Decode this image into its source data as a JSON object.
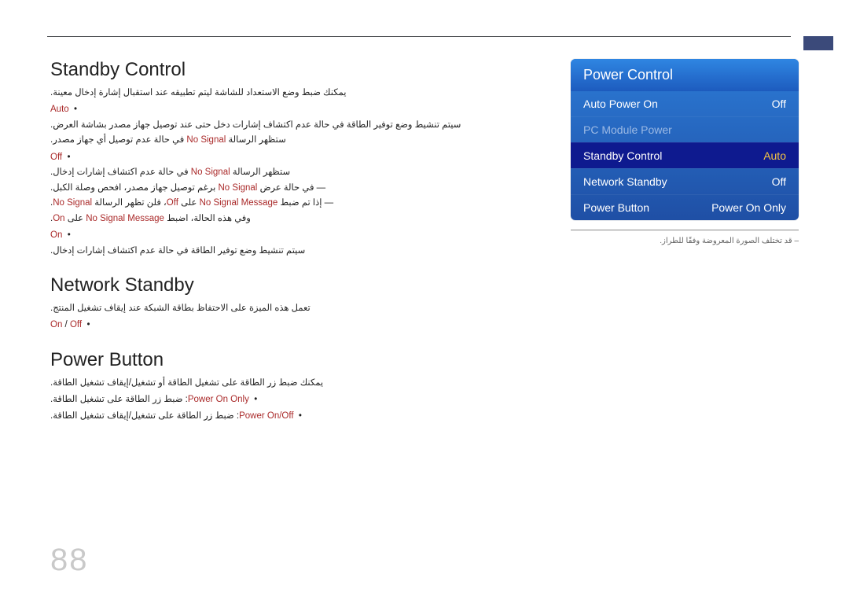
{
  "page_number": "88",
  "sections": {
    "standby": {
      "title": "Standby Control",
      "intro": "يمكنك ضبط وضع الاستعداد للشاشة ليتم تطبيقه عند استقبال إشارة إدخال معينة.",
      "auto_label": "Auto",
      "auto_body_1": "سيتم تنشيط وضع توفير الطاقة في حالة عدم اكتشاف إشارات دخل حتى عند توصيل جهاز مصدر بشاشة العرض.",
      "auto_body_2_prefix": "ستظهر الرسالة ",
      "auto_body_2_kw": "No Signal",
      "auto_body_2_suffix": " في حالة عدم توصيل أي جهاز مصدر.",
      "off_label": "Off",
      "off_body_prefix": "ستظهر الرسالة ",
      "off_body_kw": "No Signal",
      "off_body_suffix": " في حالة عدم اكتشاف إشارات إدخال.",
      "dash1_prefix": "في حالة عرض ",
      "dash1_kw": "No Signal",
      "dash1_suffix": " برغم توصيل جهاز مصدر، افحص وصلة الكبل.",
      "dash2_prefix": "إذا تم ضبط ",
      "dash2_kw1": "No Signal Message",
      "dash2_mid": " على ",
      "dash2_kw2": "Off",
      "dash2_mid2": "، فلن تظهر الرسالة ",
      "dash2_kw3": "No Signal",
      "dash2_suffix": ".",
      "dash3_prefix": "وفي هذه الحالة، اضبط ",
      "dash3_kw1": "No Signal Message",
      "dash3_mid": " على ",
      "dash3_kw2": "On",
      "dash3_suffix": ".",
      "on_label": "On",
      "on_body": "سيتم تنشيط وضع توفير الطاقة في حالة عدم اكتشاف إشارات إدخال."
    },
    "network": {
      "title": "Network Standby",
      "intro": "تعمل هذه الميزة على الاحتفاظ بطاقة الشبكة عند إيقاف تشغيل المنتج.",
      "onoff_kw1": "On",
      "onoff_sep": " / ",
      "onoff_kw2": "Off"
    },
    "power_button": {
      "title": "Power Button",
      "intro": "يمكنك ضبط زر الطاقة على تشغيل الطاقة أو تشغيل/إيقاف تشغيل الطاقة.",
      "row1_kw": "Power On Only",
      "row1_body": ": ضبط زر الطاقة على تشغيل الطاقة.",
      "row2_kw": "Power On/Off",
      "row2_body": ": ضبط زر الطاقة على تشغيل/إيقاف تشغيل الطاقة."
    }
  },
  "panel": {
    "title": "Power Control",
    "rows": [
      {
        "label": "Auto Power On",
        "value": "Off",
        "style": "normal"
      },
      {
        "label": "PC Module Power",
        "value": "",
        "style": "dim"
      },
      {
        "label": "Standby Control",
        "value": "Auto",
        "style": "hl"
      },
      {
        "label": "Network Standby",
        "value": "Off",
        "style": "normal"
      },
      {
        "label": "Power Button",
        "value": "Power On Only",
        "style": "normal"
      }
    ],
    "note": "– قد تختلف الصورة المعروضة وفقًا للطراز."
  }
}
